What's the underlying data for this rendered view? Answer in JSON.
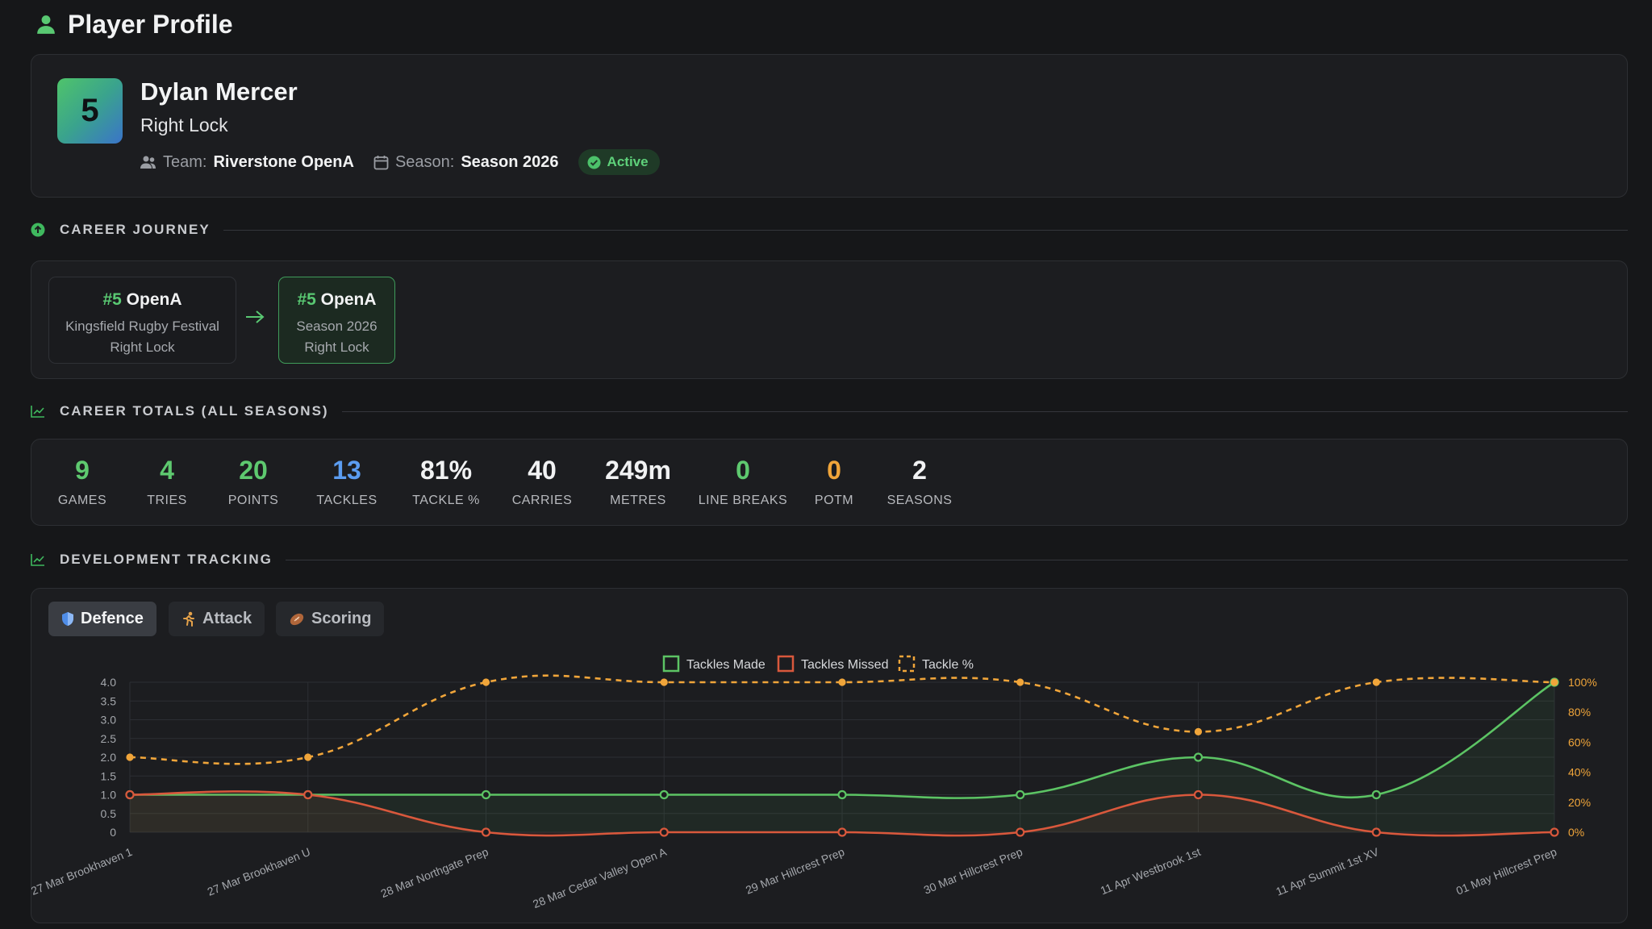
{
  "header": {
    "title": "Player Profile",
    "icon": "person-icon"
  },
  "profile": {
    "jersey_number": "5",
    "name": "Dylan Mercer",
    "position": "Right Lock",
    "team_label": "Team:",
    "team": "Riverstone OpenA",
    "season_label": "Season:",
    "season": "Season 2026",
    "status": "Active"
  },
  "sections": {
    "journey": "CAREER JOURNEY",
    "totals": "CAREER TOTALS (ALL SEASONS)",
    "development": "DEVELOPMENT TRACKING"
  },
  "journey": [
    {
      "num": "#5",
      "team": "OpenA",
      "event": "Kingsfield Rugby Festival",
      "position": "Right Lock"
    },
    {
      "num": "#5",
      "team": "OpenA",
      "event": "Season 2026",
      "position": "Right Lock"
    }
  ],
  "totals": [
    {
      "value": "9",
      "label": "GAMES",
      "color": "#5ec96f"
    },
    {
      "value": "4",
      "label": "TRIES",
      "color": "#5ec96f"
    },
    {
      "value": "20",
      "label": "POINTS",
      "color": "#5ec96f"
    },
    {
      "value": "13",
      "label": "TACKLES",
      "color": "#5b9cf0"
    },
    {
      "value": "81%",
      "label": "TACKLE %",
      "color": "#f1f2f3"
    },
    {
      "value": "40",
      "label": "CARRIES",
      "color": "#f1f2f3"
    },
    {
      "value": "249m",
      "label": "METRES",
      "color": "#f1f2f3"
    },
    {
      "value": "0",
      "label": "LINE BREAKS",
      "color": "#5ec96f"
    },
    {
      "value": "0",
      "label": "POTM",
      "color": "#f0a53a"
    },
    {
      "value": "2",
      "label": "SEASONS",
      "color": "#f1f2f3"
    }
  ],
  "tabs": [
    {
      "label": "Defence",
      "icon": "shield-icon",
      "active": true
    },
    {
      "label": "Attack",
      "icon": "runner-icon",
      "active": false
    },
    {
      "label": "Scoring",
      "icon": "rugby-ball-icon",
      "active": false
    }
  ],
  "chart_data": {
    "type": "line",
    "categories": [
      "27 Mar Brookhaven 1",
      "27 Mar Brookhaven U",
      "28 Mar Northgate Prep",
      "28 Mar Cedar Valley Open A",
      "29 Mar Hillcrest Prep",
      "30 Mar Hillcrest Prep",
      "11 Apr Westbrook 1st",
      "11 Apr Summit  1st XV",
      "01 May Hillcrest Prep"
    ],
    "series": [
      {
        "name": "Tackles Made",
        "axis": "left",
        "color": "#5cc464",
        "values": [
          1,
          1,
          1,
          1,
          1,
          1,
          2,
          1,
          4
        ]
      },
      {
        "name": "Tackles Missed",
        "axis": "left",
        "color": "#d9583c",
        "values": [
          1,
          1,
          0,
          0,
          0,
          0,
          1,
          0,
          0
        ]
      },
      {
        "name": "Tackle %",
        "axis": "right",
        "color": "#f0a53a",
        "dashed": true,
        "values": [
          50,
          50,
          100,
          100,
          100,
          100,
          67,
          100,
          100
        ]
      }
    ],
    "y_left": {
      "min": 0,
      "max": 4,
      "ticks": [
        "0",
        "0.5",
        "1.0",
        "1.5",
        "2.0",
        "2.5",
        "3.0",
        "3.5",
        "4.0"
      ]
    },
    "y_right": {
      "min": 0,
      "max": 100,
      "ticks": [
        "0%",
        "20%",
        "40%",
        "60%",
        "80%",
        "100%"
      ]
    },
    "legend_position": "top-center",
    "grid": true
  }
}
